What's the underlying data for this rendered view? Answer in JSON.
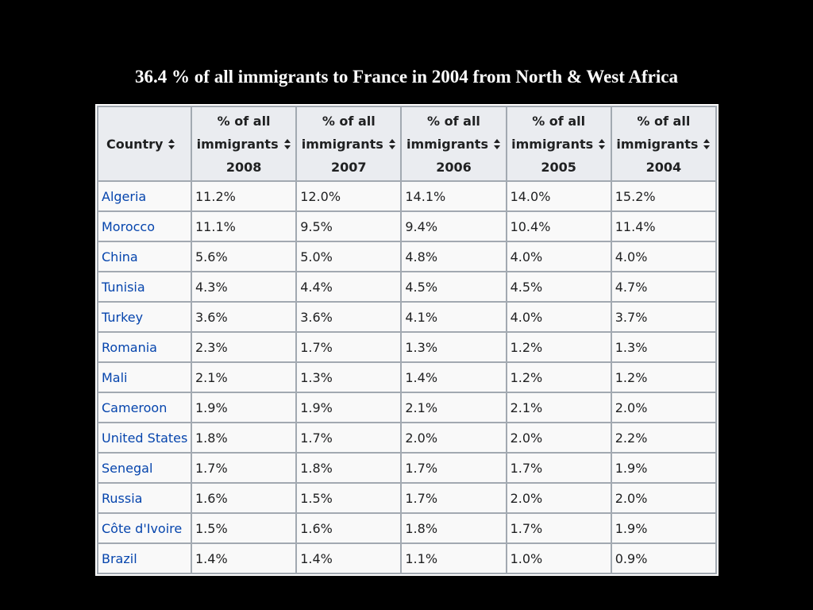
{
  "title": "36.4 % of all immigrants to France in 2004 from North & West Africa",
  "table": {
    "headers": [
      {
        "line1": "",
        "line2": "Country",
        "line3": ""
      },
      {
        "line1": "% of all",
        "line2": "immigrants",
        "line3": "2008"
      },
      {
        "line1": "% of all",
        "line2": "immigrants",
        "line3": "2007"
      },
      {
        "line1": "% of all",
        "line2": "immigrants",
        "line3": "2006"
      },
      {
        "line1": "% of all",
        "line2": "immigrants",
        "line3": "2005"
      },
      {
        "line1": "% of all",
        "line2": "immigrants",
        "line3": "2004"
      }
    ],
    "rows": [
      [
        "Algeria",
        "11.2%",
        "12.0%",
        "14.1%",
        "14.0%",
        "15.2%"
      ],
      [
        "Morocco",
        "11.1%",
        "9.5%",
        "9.4%",
        "10.4%",
        "11.4%"
      ],
      [
        "China",
        "5.6%",
        "5.0%",
        "4.8%",
        "4.0%",
        "4.0%"
      ],
      [
        "Tunisia",
        "4.3%",
        "4.4%",
        "4.5%",
        "4.5%",
        "4.7%"
      ],
      [
        "Turkey",
        "3.6%",
        "3.6%",
        "4.1%",
        "4.0%",
        "3.7%"
      ],
      [
        "Romania",
        "2.3%",
        "1.7%",
        "1.3%",
        "1.2%",
        "1.3%"
      ],
      [
        "Mali",
        "2.1%",
        "1.3%",
        "1.4%",
        "1.2%",
        "1.2%"
      ],
      [
        "Cameroon",
        "1.9%",
        "1.9%",
        "2.1%",
        "2.1%",
        "2.0%"
      ],
      [
        "United States",
        "1.8%",
        "1.7%",
        "2.0%",
        "2.0%",
        "2.2%"
      ],
      [
        "Senegal",
        "1.7%",
        "1.8%",
        "1.7%",
        "1.7%",
        "1.9%"
      ],
      [
        "Russia",
        "1.6%",
        "1.5%",
        "1.7%",
        "2.0%",
        "2.0%"
      ],
      [
        "Côte d'Ivoire",
        "1.5%",
        "1.6%",
        "1.8%",
        "1.7%",
        "1.9%"
      ],
      [
        "Brazil",
        "1.4%",
        "1.4%",
        "1.1%",
        "1.0%",
        "0.9%"
      ]
    ]
  },
  "icons": {
    "sort": "sort-updown-icon"
  },
  "colors": {
    "background": "#000000",
    "title": "#ffffff",
    "link": "#0645ad",
    "header_bg": "#eaecf0",
    "cell_bg": "#f9f9f9",
    "border": "#a2a9b1"
  }
}
